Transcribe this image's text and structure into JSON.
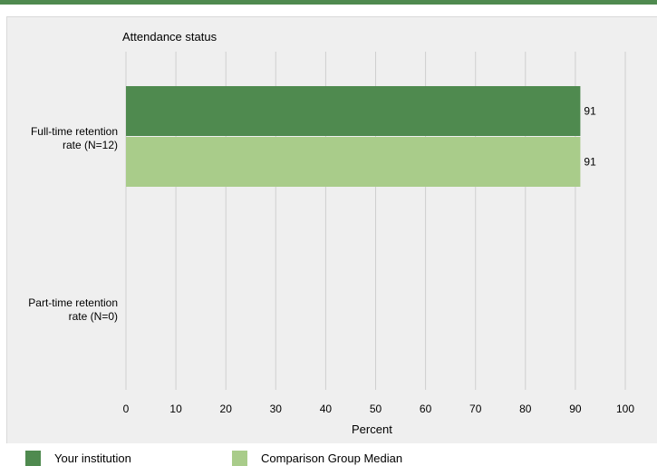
{
  "chart_data": {
    "type": "bar",
    "orientation": "horizontal",
    "title": "Attendance status",
    "xlabel": "Percent",
    "xlim": [
      0,
      100
    ],
    "xticks": [
      "0",
      "10",
      "20",
      "30",
      "40",
      "50",
      "60",
      "70",
      "80",
      "90",
      "100"
    ],
    "grid": true,
    "categories": [
      "Full-time retention rate (N=12)",
      "Part-time retention rate (N=0)"
    ],
    "category_lines": [
      [
        "Full-time retention",
        "rate (N=12)"
      ],
      [
        "Part-time retention",
        "rate (N=0)"
      ]
    ],
    "series": [
      {
        "name": "Your institution",
        "color": "#4f8a4f",
        "values": [
          91,
          null
        ],
        "labels": [
          "91",
          ""
        ]
      },
      {
        "name": "Comparison Group Median",
        "color": "#a9cc8a",
        "values": [
          91,
          null
        ],
        "labels": [
          "91",
          ""
        ]
      }
    ],
    "legend_position": "bottom"
  }
}
